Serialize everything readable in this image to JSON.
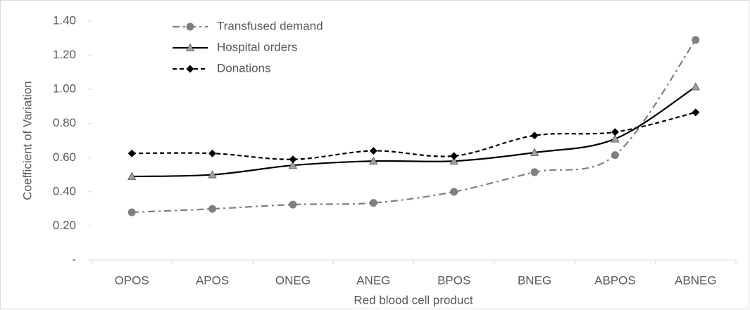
{
  "chart_data": {
    "type": "line",
    "x_label": "Red blood cell product",
    "y_label": "Coefficient of Variation",
    "categories": [
      "OPOS",
      "APOS",
      "ONEG",
      "ANEG",
      "BPOS",
      "BNEG",
      "ABPOS",
      "ABNEG"
    ],
    "series": [
      {
        "name": "Transfused demand",
        "color": "#7f7f7f",
        "marker": "circle",
        "linestyle": "dashdot",
        "values": [
          0.28,
          0.3,
          0.325,
          0.335,
          0.4,
          0.515,
          0.615,
          1.29
        ]
      },
      {
        "name": "Hospital orders",
        "color": "#000000",
        "marker": "triangle",
        "marker_color": "#a0a0a0",
        "linestyle": "solid",
        "values": [
          0.49,
          0.5,
          0.555,
          0.58,
          0.58,
          0.63,
          0.71,
          1.015
        ]
      },
      {
        "name": "Donations",
        "color": "#000000",
        "marker": "diamond",
        "linestyle": "dashed",
        "values": [
          0.625,
          0.625,
          0.59,
          0.64,
          0.61,
          0.73,
          0.75,
          0.865
        ]
      }
    ],
    "ylim": [
      0,
      1.4
    ],
    "yticks": [
      {
        "value": 0,
        "label": "-"
      },
      {
        "value": 0.2,
        "label": "0.20"
      },
      {
        "value": 0.4,
        "label": "0.40"
      },
      {
        "value": 0.6,
        "label": "0.60"
      },
      {
        "value": 0.8,
        "label": "0.80"
      },
      {
        "value": 1.0,
        "label": "1.00"
      },
      {
        "value": 1.2,
        "label": "1.20"
      },
      {
        "value": 1.4,
        "label": "1.40"
      }
    ],
    "grid": false,
    "legend": "upper left"
  }
}
